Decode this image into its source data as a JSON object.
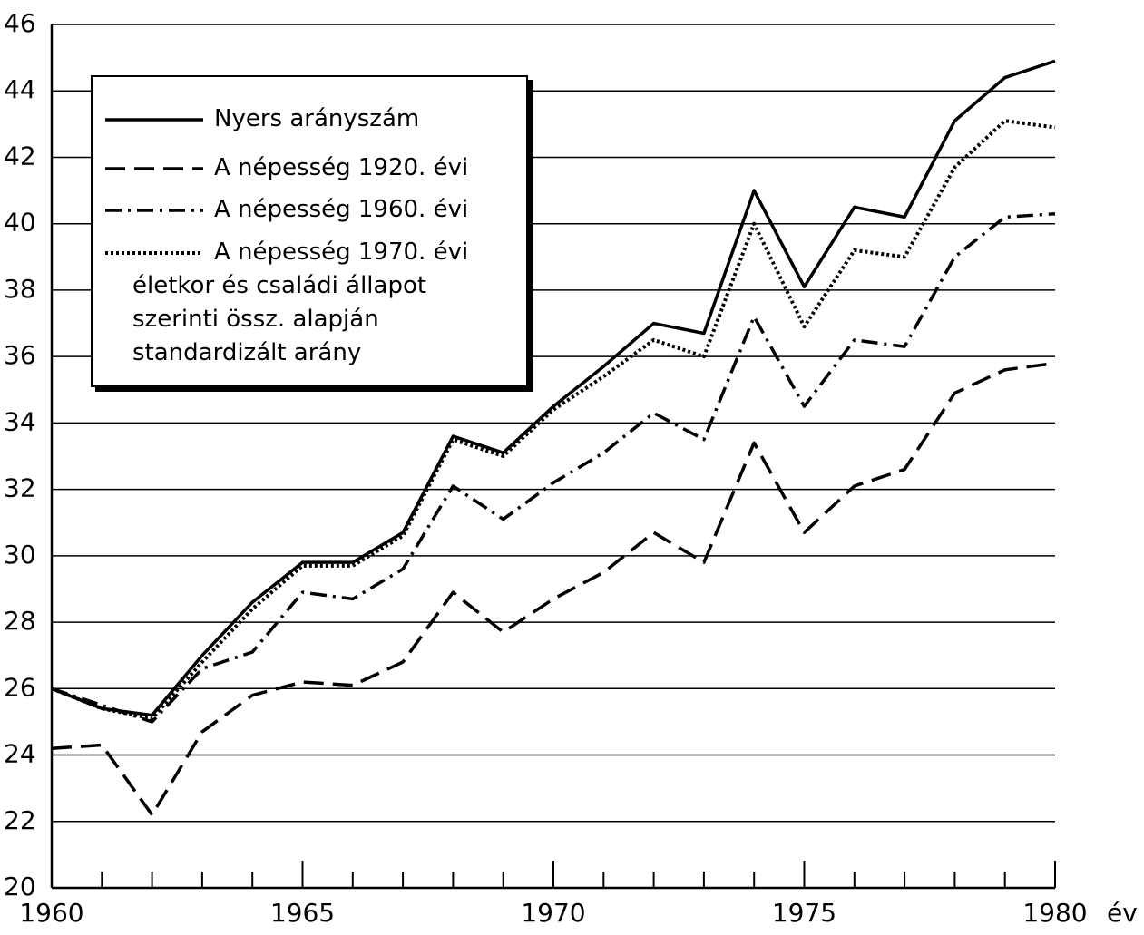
{
  "chart_data": {
    "type": "line",
    "xlabel": "év",
    "x": [
      1960,
      1961,
      1962,
      1963,
      1964,
      1965,
      1966,
      1967,
      1968,
      1969,
      1970,
      1971,
      1972,
      1973,
      1974,
      1975,
      1976,
      1977,
      1978,
      1979,
      1980
    ],
    "xlim": [
      1960,
      1980
    ],
    "xticks": [
      1960,
      1965,
      1970,
      1975,
      1980
    ],
    "ylim": [
      20,
      46
    ],
    "yticks": [
      20,
      22,
      24,
      26,
      28,
      30,
      32,
      34,
      36,
      38,
      40,
      42,
      44,
      46
    ],
    "grid": true,
    "legend": "upper left",
    "series": [
      {
        "name": "Nyers arányszám",
        "color": "#000000",
        "dash": "solid",
        "values": [
          26.0,
          25.4,
          25.2,
          27.0,
          28.6,
          29.8,
          29.8,
          30.7,
          33.6,
          33.1,
          34.5,
          35.7,
          37.0,
          36.7,
          41.0,
          38.1,
          40.5,
          40.2,
          43.1,
          44.4,
          44.9
        ]
      },
      {
        "name": "A népesség 1920. évi",
        "color": "#000000",
        "dash": "dashed",
        "values": [
          24.2,
          24.3,
          22.2,
          24.7,
          25.8,
          26.2,
          26.1,
          26.8,
          28.9,
          27.7,
          28.7,
          29.5,
          30.7,
          29.8,
          33.4,
          30.7,
          32.1,
          32.6,
          34.9,
          35.6,
          35.8
        ]
      },
      {
        "name": "A népesség 1960. évi",
        "color": "#000000",
        "dash": "dashdot",
        "values": [
          26.0,
          25.5,
          25.0,
          26.6,
          27.1,
          28.9,
          28.7,
          29.6,
          32.1,
          31.1,
          32.2,
          33.1,
          34.3,
          33.5,
          37.2,
          34.5,
          36.5,
          36.3,
          39.0,
          40.2,
          40.3
        ]
      },
      {
        "name": "A népesség 1970. évi\néletkor és családi állapot\nszerinti össz. alapján\nstandardizált arány",
        "color": "#000000",
        "dash": "dotted",
        "values": [
          26.0,
          25.4,
          25.1,
          26.8,
          28.4,
          29.7,
          29.7,
          30.6,
          33.5,
          33.0,
          34.4,
          35.4,
          36.5,
          36.0,
          40.0,
          36.9,
          39.2,
          39.0,
          41.7,
          43.1,
          42.9
        ]
      }
    ]
  }
}
